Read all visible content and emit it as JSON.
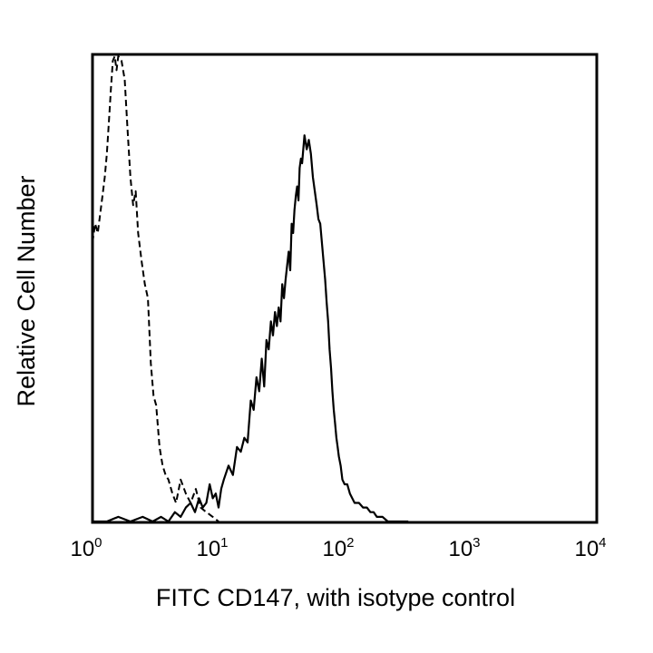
{
  "chart_data": {
    "type": "line",
    "title": "",
    "xlabel": "FITC CD147, with isotype control",
    "ylabel": "Relative Cell Number",
    "x_scale": "log",
    "xlim": [
      1,
      10000
    ],
    "ylim": [
      0,
      100
    ],
    "grid": false,
    "legend": "none",
    "x_ticks": [
      {
        "value": 1,
        "base": "10",
        "exp": "0"
      },
      {
        "value": 10,
        "base": "10",
        "exp": "1"
      },
      {
        "value": 100,
        "base": "10",
        "exp": "2"
      },
      {
        "value": 1000,
        "base": "10",
        "exp": "3"
      },
      {
        "value": 10000,
        "base": "10",
        "exp": "4"
      }
    ],
    "series": [
      {
        "style": "dashed",
        "color": "#000000",
        "x": [
          1.0,
          1.05,
          1.1,
          1.15,
          1.2,
          1.25,
          1.3,
          1.35,
          1.4,
          1.45,
          1.5,
          1.55,
          1.6,
          1.7,
          1.8,
          1.9,
          2.0,
          2.1,
          2.2,
          2.3,
          2.45,
          2.6,
          2.75,
          2.9,
          3.05,
          3.2,
          3.4,
          3.6,
          3.8,
          4.0,
          4.3,
          4.6,
          5.0,
          5.5,
          6.0,
          6.6,
          7.2,
          8.0,
          9.0,
          10.0
        ],
        "y": [
          60,
          64,
          62,
          66,
          70,
          74,
          79,
          86,
          93,
          99,
          100,
          97,
          100,
          99,
          95,
          84,
          74,
          68,
          71,
          62,
          56,
          51,
          48,
          34,
          27,
          25,
          16,
          12,
          10,
          9,
          6,
          4,
          9,
          6,
          4,
          7,
          3,
          2,
          1,
          0
        ]
      },
      {
        "style": "solid",
        "color": "#000000",
        "x": [
          1.0,
          1.3,
          1.6,
          2.0,
          2.5,
          3.0,
          3.5,
          4.0,
          4.5,
          5.0,
          5.5,
          6.0,
          6.5,
          7.0,
          7.5,
          8.0,
          8.5,
          9.0,
          9.5,
          10.0,
          10.5,
          11,
          12,
          13,
          14,
          15,
          16,
          17,
          18,
          19,
          20,
          21,
          22,
          23,
          24,
          25,
          26,
          27,
          28,
          29,
          30,
          31,
          32,
          33,
          34,
          35,
          36,
          37,
          38,
          39,
          40,
          41,
          42,
          43,
          44,
          45,
          46,
          47,
          48,
          50,
          52,
          54,
          56,
          58,
          60,
          62,
          64,
          66,
          68,
          70,
          72,
          74,
          76,
          78,
          80,
          82,
          84,
          86,
          88,
          90,
          93,
          96,
          100,
          105,
          110,
          115,
          120,
          125,
          130,
          140,
          150,
          160,
          170,
          180,
          200,
          220,
          250,
          280,
          320
        ],
        "y": [
          0,
          0,
          1,
          0,
          1,
          0,
          1,
          0,
          2,
          1,
          3,
          4,
          2,
          5,
          3,
          4,
          8,
          5,
          6,
          3,
          7,
          9,
          12,
          10,
          16,
          15,
          18,
          17,
          26,
          24,
          31,
          28,
          35,
          29,
          39,
          37,
          43,
          40,
          45,
          42,
          46,
          43,
          51,
          48,
          52,
          55,
          58,
          54,
          64,
          62,
          67,
          70,
          72,
          69,
          76,
          78,
          77,
          80,
          83,
          80,
          82,
          79,
          74,
          71,
          68,
          65,
          64,
          60,
          56,
          52,
          47,
          43,
          37,
          33,
          28,
          24,
          21,
          18,
          16,
          14,
          12,
          9,
          8,
          8,
          6,
          5,
          4,
          4,
          4,
          3,
          3,
          2,
          2,
          1,
          1,
          0,
          0,
          0,
          0
        ]
      }
    ]
  }
}
